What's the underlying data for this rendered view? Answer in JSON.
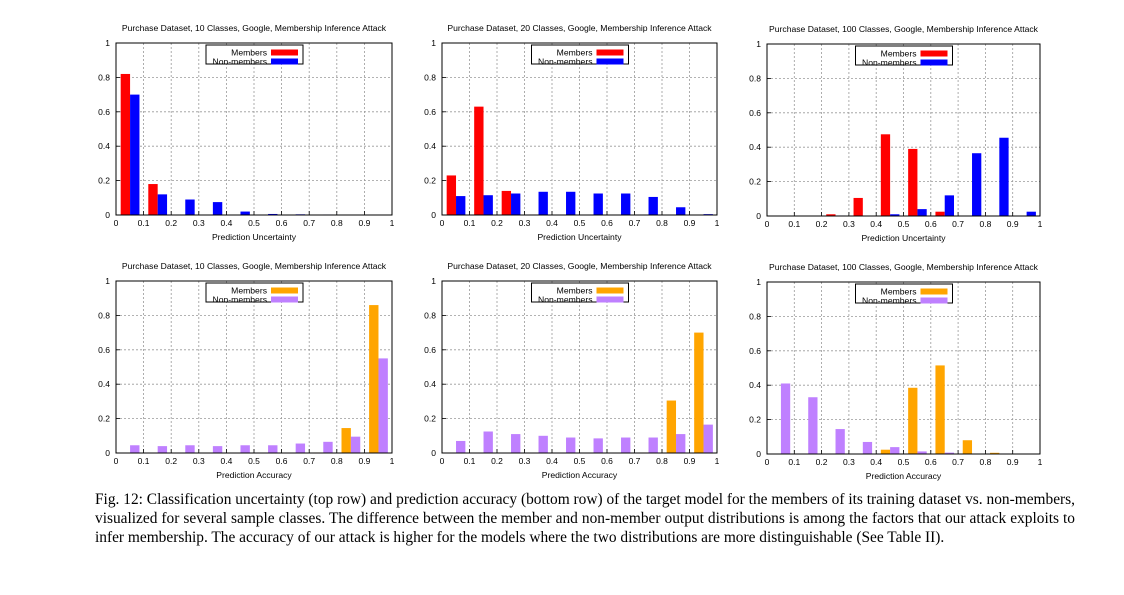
{
  "caption": "Fig. 12: Classification uncertainty (top row) and prediction accuracy (bottom row) of the target model for the members of its training dataset vs. non-members, visualized for several sample classes. The difference between the member and non-member output distributions is among the factors that our attack exploits to infer membership. The accuracy of our attack is higher for the models where the two distributions are more distinguishable (See Table II).",
  "chart_data": [
    {
      "type": "bar",
      "title": "Purchase Dataset, 10 Classes, Google, Membership Inference Attack",
      "xlabel": "Prediction Uncertainty",
      "ylabel": "",
      "xlim": [
        0,
        1
      ],
      "ylim": [
        0,
        1
      ],
      "grid": true,
      "legend": "top-center",
      "xticks": [
        "0",
        "0.1",
        "0.2",
        "0.3",
        "0.4",
        "0.5",
        "0.6",
        "0.7",
        "0.8",
        "0.9",
        "1"
      ],
      "yticks": [
        "0",
        "0.2",
        "0.4",
        "0.6",
        "0.8",
        "1"
      ],
      "x": [
        0.05,
        0.15,
        0.25,
        0.35,
        0.45,
        0.55,
        0.65,
        0.75,
        0.85,
        0.95
      ],
      "series": [
        {
          "name": "Members",
          "color": "#ff0000",
          "values": [
            0.82,
            0.18,
            0,
            0,
            0,
            0,
            0,
            0,
            0,
            0
          ]
        },
        {
          "name": "Non-members",
          "color": "#0000ff",
          "values": [
            0.7,
            0.12,
            0.09,
            0.075,
            0.02,
            0.006,
            0.004,
            0.003,
            0,
            0
          ]
        }
      ]
    },
    {
      "type": "bar",
      "title": "Purchase Dataset, 20 Classes, Google, Membership Inference Attack",
      "xlabel": "Prediction Uncertainty",
      "ylabel": "",
      "xlim": [
        0,
        1
      ],
      "ylim": [
        0,
        1
      ],
      "grid": true,
      "legend": "top-center",
      "xticks": [
        "0",
        "0.1",
        "0.2",
        "0.3",
        "0.4",
        "0.5",
        "0.6",
        "0.7",
        "0.8",
        "0.9",
        "1"
      ],
      "yticks": [
        "0",
        "0.2",
        "0.4",
        "0.6",
        "0.8",
        "1"
      ],
      "x": [
        0.05,
        0.15,
        0.25,
        0.35,
        0.45,
        0.55,
        0.65,
        0.75,
        0.85,
        0.95
      ],
      "series": [
        {
          "name": "Members",
          "color": "#ff0000",
          "values": [
            0.23,
            0.63,
            0.14,
            0.003,
            0,
            0,
            0,
            0,
            0,
            0
          ]
        },
        {
          "name": "Non-members",
          "color": "#0000ff",
          "values": [
            0.11,
            0.115,
            0.125,
            0.135,
            0.135,
            0.125,
            0.125,
            0.105,
            0.045,
            0.005
          ]
        }
      ]
    },
    {
      "type": "bar",
      "title": "Purchase Dataset, 100 Classes, Google, Membership Inference Attack",
      "xlabel": "Prediction Uncertainty",
      "ylabel": "",
      "xlim": [
        0,
        1
      ],
      "ylim": [
        0,
        1
      ],
      "grid": true,
      "legend": "top-center",
      "xticks": [
        "0",
        "0.1",
        "0.2",
        "0.3",
        "0.4",
        "0.5",
        "0.6",
        "0.7",
        "0.8",
        "0.9",
        "1"
      ],
      "yticks": [
        "0",
        "0.2",
        "0.4",
        "0.6",
        "0.8",
        "1"
      ],
      "x": [
        0.05,
        0.15,
        0.25,
        0.35,
        0.45,
        0.55,
        0.65,
        0.75,
        0.85,
        0.95
      ],
      "series": [
        {
          "name": "Members",
          "color": "#ff0000",
          "values": [
            0,
            0.002,
            0.01,
            0.105,
            0.475,
            0.39,
            0.025,
            0,
            0,
            0
          ]
        },
        {
          "name": "Non-members",
          "color": "#0000ff",
          "values": [
            0,
            0,
            0.003,
            0,
            0.01,
            0.04,
            0.12,
            0.365,
            0.455,
            0.025
          ]
        }
      ]
    },
    {
      "type": "bar",
      "title": "Purchase Dataset, 10 Classes, Google, Membership Inference Attack",
      "xlabel": "Prediction Accuracy",
      "ylabel": "",
      "xlim": [
        0,
        1
      ],
      "ylim": [
        0,
        1
      ],
      "grid": true,
      "legend": "top-center",
      "xticks": [
        "0",
        "0.1",
        "0.2",
        "0.3",
        "0.4",
        "0.5",
        "0.6",
        "0.7",
        "0.8",
        "0.9",
        "1"
      ],
      "yticks": [
        "0",
        "0.2",
        "0.4",
        "0.6",
        "0.8",
        "1"
      ],
      "x": [
        0.05,
        0.15,
        0.25,
        0.35,
        0.45,
        0.55,
        0.65,
        0.75,
        0.85,
        0.95
      ],
      "series": [
        {
          "name": "Members",
          "color": "#ffa500",
          "values": [
            0,
            0,
            0,
            0,
            0,
            0,
            0,
            0.003,
            0.145,
            0.86
          ]
        },
        {
          "name": "Non-members",
          "color": "#bf80ff",
          "values": [
            0.045,
            0.04,
            0.045,
            0.04,
            0.045,
            0.045,
            0.055,
            0.065,
            0.095,
            0.55
          ]
        }
      ]
    },
    {
      "type": "bar",
      "title": "Purchase Dataset, 20 Classes, Google, Membership Inference Attack",
      "xlabel": "Prediction Accuracy",
      "ylabel": "",
      "xlim": [
        0,
        1
      ],
      "ylim": [
        0,
        1
      ],
      "grid": true,
      "legend": "top-center",
      "xticks": [
        "0",
        "0.1",
        "0.2",
        "0.3",
        "0.4",
        "0.5",
        "0.6",
        "0.7",
        "0.8",
        "0.9",
        "1"
      ],
      "yticks": [
        "0",
        "0.2",
        "0.4",
        "0.6",
        "0.8",
        "1"
      ],
      "x": [
        0.05,
        0.15,
        0.25,
        0.35,
        0.45,
        0.55,
        0.65,
        0.75,
        0.85,
        0.95
      ],
      "series": [
        {
          "name": "Members",
          "color": "#ffa500",
          "values": [
            0,
            0,
            0,
            0,
            0,
            0,
            0,
            0.003,
            0.305,
            0.7
          ]
        },
        {
          "name": "Non-members",
          "color": "#bf80ff",
          "values": [
            0.07,
            0.125,
            0.11,
            0.1,
            0.09,
            0.085,
            0.09,
            0.09,
            0.11,
            0.165
          ]
        }
      ]
    },
    {
      "type": "bar",
      "title": "Purchase Dataset, 100 Classes, Google, Membership Inference Attack",
      "xlabel": "Prediction Accuracy",
      "ylabel": "",
      "xlim": [
        0,
        1
      ],
      "ylim": [
        0,
        1
      ],
      "grid": true,
      "legend": "top-center",
      "xticks": [
        "0",
        "0.1",
        "0.2",
        "0.3",
        "0.4",
        "0.5",
        "0.6",
        "0.7",
        "0.8",
        "0.9",
        "1"
      ],
      "yticks": [
        "0",
        "0.2",
        "0.4",
        "0.6",
        "0.8",
        "1"
      ],
      "x": [
        0.05,
        0.15,
        0.25,
        0.35,
        0.45,
        0.55,
        0.65,
        0.75,
        0.85,
        0.95
      ],
      "series": [
        {
          "name": "Members",
          "color": "#ffa500",
          "values": [
            0,
            0,
            0,
            0,
            0.025,
            0.385,
            0.515,
            0.08,
            0.007,
            0
          ]
        },
        {
          "name": "Non-members",
          "color": "#bf80ff",
          "values": [
            0.41,
            0.33,
            0.145,
            0.07,
            0.04,
            0.015,
            0.008,
            0,
            0.003,
            0
          ]
        }
      ]
    }
  ]
}
